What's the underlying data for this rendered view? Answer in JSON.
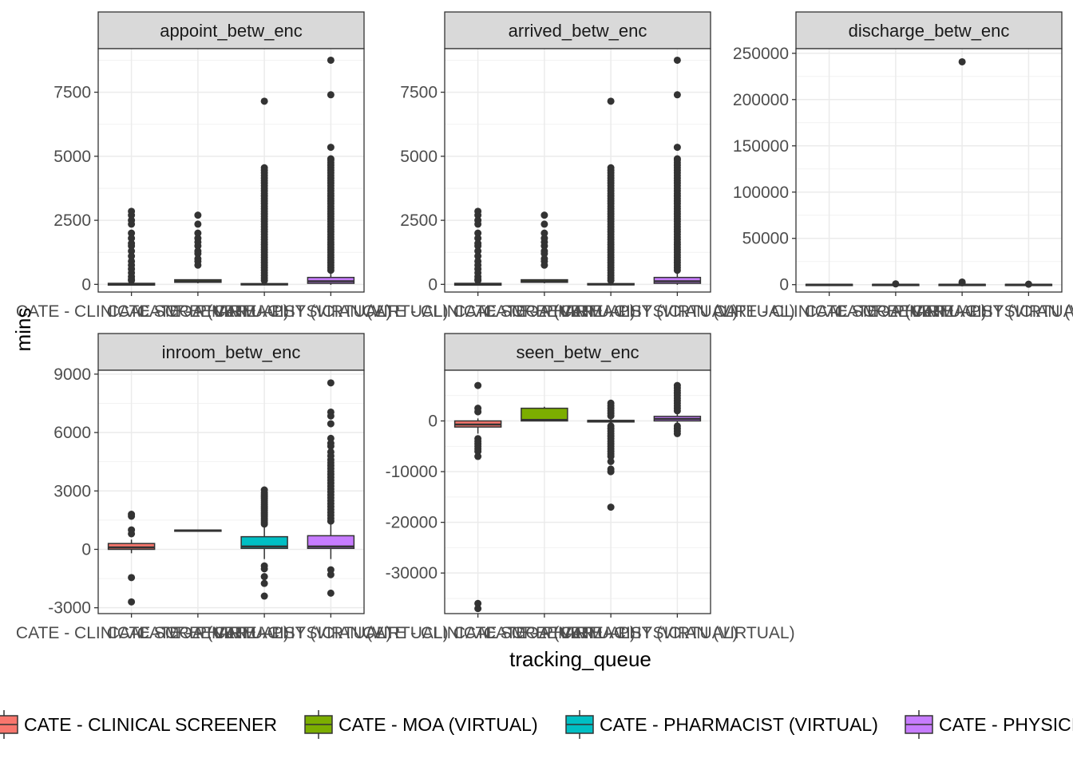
{
  "chart_data": {
    "type": "boxplot",
    "xlabel": "tracking_queue",
    "ylabel": "mins",
    "categories": [
      "CATE - CLINICAL SCREENER",
      "CATE - MOA (VIRTUAL)",
      "CATE - PHARMACIST (VIRTUAL)",
      "CATE - PHYSICIAN (VIRTUAL)"
    ],
    "colors": [
      "#F8766D",
      "#7CAE00",
      "#00BFC4",
      "#C77CFF"
    ],
    "legend": {
      "position": "bottom",
      "entries": [
        "CATE - CLINICAL SCREENER",
        "CATE - MOA (VIRTUAL)",
        "CATE - PHARMACIST (VIRTUAL)",
        "CATE - PHYSICIAN (VIRTUAL)"
      ]
    },
    "grid": true,
    "panels": [
      {
        "title": "appoint_betw_enc",
        "ylim": [
          -300,
          9200
        ],
        "yticks": [
          0,
          2500,
          5000,
          7500
        ],
        "boxes": [
          {
            "q1": -30,
            "median": 0,
            "q3": 40,
            "whisker_low": -40,
            "whisker_high": 60,
            "outliers": [
              2850,
              2700,
              2500,
              2350,
              2000,
              1800,
              1600,
              1500,
              1300,
              1100,
              900,
              750,
              600,
              450,
              300,
              200,
              150
            ]
          },
          {
            "q1": 80,
            "median": 120,
            "q3": 180,
            "whisker_low": 40,
            "whisker_high": 200,
            "outliers": [
              2700,
              2350,
              2000,
              1800,
              1650,
              1500,
              1300,
              1200,
              1000,
              900,
              750
            ]
          },
          {
            "q1": -20,
            "median": 0,
            "q3": 30,
            "whisker_low": -40,
            "whisker_high": 60,
            "outliers": [
              7150,
              4550,
              4450,
              4350,
              4250,
              4150,
              4050,
              3950,
              3850,
              3750,
              3650,
              3550,
              3450,
              3350,
              3250,
              3150,
              3050,
              2950,
              2850,
              2750,
              2650,
              2550,
              2450,
              2350,
              2250,
              2150,
              2050,
              1950,
              1850,
              1750,
              1650,
              1550,
              1450,
              1350,
              1250,
              1150,
              1050,
              950,
              850,
              750,
              650,
              550,
              450,
              350,
              250,
              150
            ]
          },
          {
            "q1": 40,
            "median": 120,
            "q3": 270,
            "whisker_low": -20,
            "whisker_high": 500,
            "outliers": [
              8750,
              7400,
              5350,
              4900,
              4850,
              4750,
              4650,
              4550,
              4450,
              4350,
              4250,
              4150,
              4050,
              3950,
              3850,
              3750,
              3650,
              3550,
              3450,
              3350,
              3250,
              3150,
              3050,
              2950,
              2850,
              2750,
              2650,
              2550,
              2450,
              2350,
              2250,
              2150,
              2050,
              1950,
              1850,
              1750,
              1650,
              1550,
              1450,
              1350,
              1250,
              1150,
              1050,
              950,
              850,
              750,
              650,
              550
            ]
          }
        ]
      },
      {
        "title": "arrived_betw_enc",
        "ylim": [
          -300,
          9200
        ],
        "yticks": [
          0,
          2500,
          5000,
          7500
        ],
        "boxes": [
          {
            "q1": -30,
            "median": 0,
            "q3": 40,
            "whisker_low": -40,
            "whisker_high": 60,
            "outliers": [
              2850,
              2700,
              2500,
              2350,
              2000,
              1800,
              1600,
              1500,
              1300,
              1100,
              900,
              750,
              600,
              450,
              300,
              200,
              150
            ]
          },
          {
            "q1": 80,
            "median": 120,
            "q3": 180,
            "whisker_low": 40,
            "whisker_high": 200,
            "outliers": [
              2700,
              2350,
              2000,
              1800,
              1650,
              1500,
              1300,
              1200,
              1000,
              900,
              750
            ]
          },
          {
            "q1": -20,
            "median": 0,
            "q3": 30,
            "whisker_low": -40,
            "whisker_high": 60,
            "outliers": [
              7150,
              4550,
              4450,
              4350,
              4250,
              4150,
              4050,
              3950,
              3850,
              3750,
              3650,
              3550,
              3450,
              3350,
              3250,
              3150,
              3050,
              2950,
              2850,
              2750,
              2650,
              2550,
              2450,
              2350,
              2250,
              2150,
              2050,
              1950,
              1850,
              1750,
              1650,
              1550,
              1450,
              1350,
              1250,
              1150,
              1050,
              950,
              850,
              750,
              650,
              550,
              450,
              350,
              250,
              150
            ]
          },
          {
            "q1": 40,
            "median": 120,
            "q3": 270,
            "whisker_low": -20,
            "whisker_high": 500,
            "outliers": [
              8750,
              7400,
              5350,
              4900,
              4850,
              4750,
              4650,
              4550,
              4450,
              4350,
              4250,
              4150,
              4050,
              3950,
              3850,
              3750,
              3650,
              3550,
              3450,
              3350,
              3250,
              3150,
              3050,
              2950,
              2850,
              2750,
              2650,
              2550,
              2450,
              2350,
              2250,
              2150,
              2050,
              1950,
              1850,
              1750,
              1650,
              1550,
              1450,
              1350,
              1250,
              1150,
              1050,
              950,
              850,
              750,
              650,
              550
            ]
          }
        ]
      },
      {
        "title": "discharge_betw_enc",
        "ylim": [
          -8000,
          255000
        ],
        "yticks": [
          0,
          50000,
          100000,
          150000,
          200000,
          250000
        ],
        "boxes": [
          {
            "q1": -300,
            "median": 0,
            "q3": 300,
            "whisker_low": -500,
            "whisker_high": 500,
            "outliers": []
          },
          {
            "q1": -300,
            "median": 0,
            "q3": 300,
            "whisker_low": -500,
            "whisker_high": 500,
            "outliers": [
              800
            ]
          },
          {
            "q1": -300,
            "median": 0,
            "q3": 300,
            "whisker_low": -500,
            "whisker_high": 500,
            "outliers": [
              240800,
              2800,
              2000
            ]
          },
          {
            "q1": -300,
            "median": 0,
            "q3": 300,
            "whisker_low": -500,
            "whisker_high": 500,
            "outliers": [
              500
            ]
          }
        ]
      },
      {
        "title": "inroom_betw_enc",
        "ylim": [
          -3300,
          9200
        ],
        "yticks": [
          -3000,
          0,
          3000,
          6000,
          9000
        ],
        "boxes": [
          {
            "q1": 0,
            "median": 100,
            "q3": 300,
            "whisker_low": -200,
            "whisker_high": 500,
            "outliers": [
              1800,
              1700,
              1000,
              800,
              -1450,
              -2700
            ]
          },
          {
            "q1": 950,
            "median": 970,
            "q3": 990,
            "whisker_low": 950,
            "whisker_high": 990,
            "outliers": []
          },
          {
            "q1": 50,
            "median": 150,
            "q3": 650,
            "whisker_low": -500,
            "whisker_high": 1200,
            "outliers": [
              3050,
              2900,
              2800,
              2700,
              2600,
              2500,
              2400,
              2300,
              2200,
              2100,
              2000,
              1900,
              1800,
              1700,
              1600,
              1500,
              1400,
              1300,
              -850,
              -1000,
              -1400,
              -1750,
              -2400
            ]
          },
          {
            "q1": 50,
            "median": 150,
            "q3": 700,
            "whisker_low": -500,
            "whisker_high": 1300,
            "outliers": [
              8550,
              7050,
              6850,
              6450,
              5700,
              5450,
              5300,
              5000,
              4800,
              4600,
              4450,
              4300,
              4150,
              4000,
              3850,
              3700,
              3550,
              3400,
              3250,
              3100,
              2950,
              2800,
              2650,
              2500,
              2350,
              2200,
              2050,
              1900,
              1750,
              1600,
              1450,
              -1050,
              -1300,
              -2250
            ]
          }
        ]
      },
      {
        "title": "seen_betw_enc",
        "ylim": [
          -38000,
          10000
        ],
        "yticks": [
          -30000,
          -20000,
          -10000,
          0
        ],
        "boxes": [
          {
            "q1": -1200,
            "median": -700,
            "q3": 0,
            "whisker_low": -2500,
            "whisker_high": 500,
            "outliers": [
              7000,
              2500,
              1800,
              -3500,
              -4000,
              -4500,
              -5000,
              -5500,
              -6000,
              -7000,
              -36000,
              -37000
            ]
          },
          {
            "q1": 0,
            "median": 200,
            "q3": 2500,
            "whisker_low": 0,
            "whisker_high": 2800,
            "outliers": []
          },
          {
            "q1": -200,
            "median": 0,
            "q3": 100,
            "whisker_low": -600,
            "whisker_high": 600,
            "outliers": [
              3500,
              3000,
              2500,
              2000,
              1500,
              1000,
              -1000,
              -1500,
              -2000,
              -2500,
              -3000,
              -3500,
              -4000,
              -4500,
              -5000,
              -5500,
              -6000,
              -6500,
              -7000,
              -8000,
              -9500,
              -10000,
              -17000
            ]
          },
          {
            "q1": 0,
            "median": 400,
            "q3": 900,
            "whisker_low": -400,
            "whisker_high": 1800,
            "outliers": [
              7000,
              6500,
              6000,
              5500,
              5000,
              4500,
              4000,
              3500,
              3000,
              2500,
              2000,
              -1000,
              -1500,
              -2000,
              -2500
            ]
          }
        ]
      }
    ]
  }
}
